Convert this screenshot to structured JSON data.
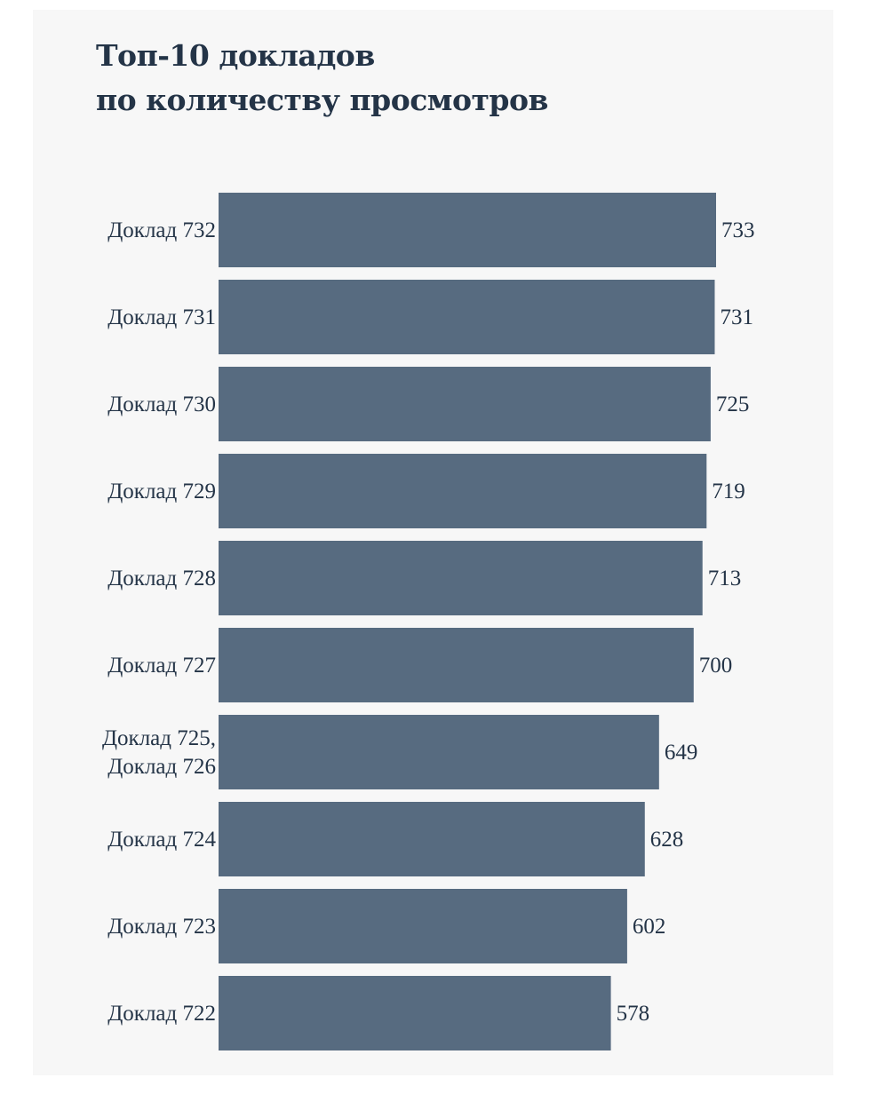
{
  "chart_data": {
    "type": "bar",
    "orientation": "horizontal",
    "title_lines": [
      "Топ-10 докладов",
      "по количеству просмотров"
    ],
    "categories": [
      [
        "Доклад 732"
      ],
      [
        "Доклад 731"
      ],
      [
        "Доклад 730"
      ],
      [
        "Доклад 729"
      ],
      [
        "Доклад 728"
      ],
      [
        "Доклад 727"
      ],
      [
        "Доклад 725,",
        "Доклад 726"
      ],
      [
        "Доклад 724"
      ],
      [
        "Доклад 723"
      ],
      [
        "Доклад 722"
      ]
    ],
    "values": [
      733,
      731,
      725,
      719,
      713,
      700,
      649,
      628,
      602,
      578
    ],
    "xlim": [
      0,
      733
    ],
    "bar_color": "#576b80",
    "text_color": "#243447",
    "background_color": "#f7f7f7",
    "grid": false,
    "axes_visible": false,
    "data_labels": true
  }
}
